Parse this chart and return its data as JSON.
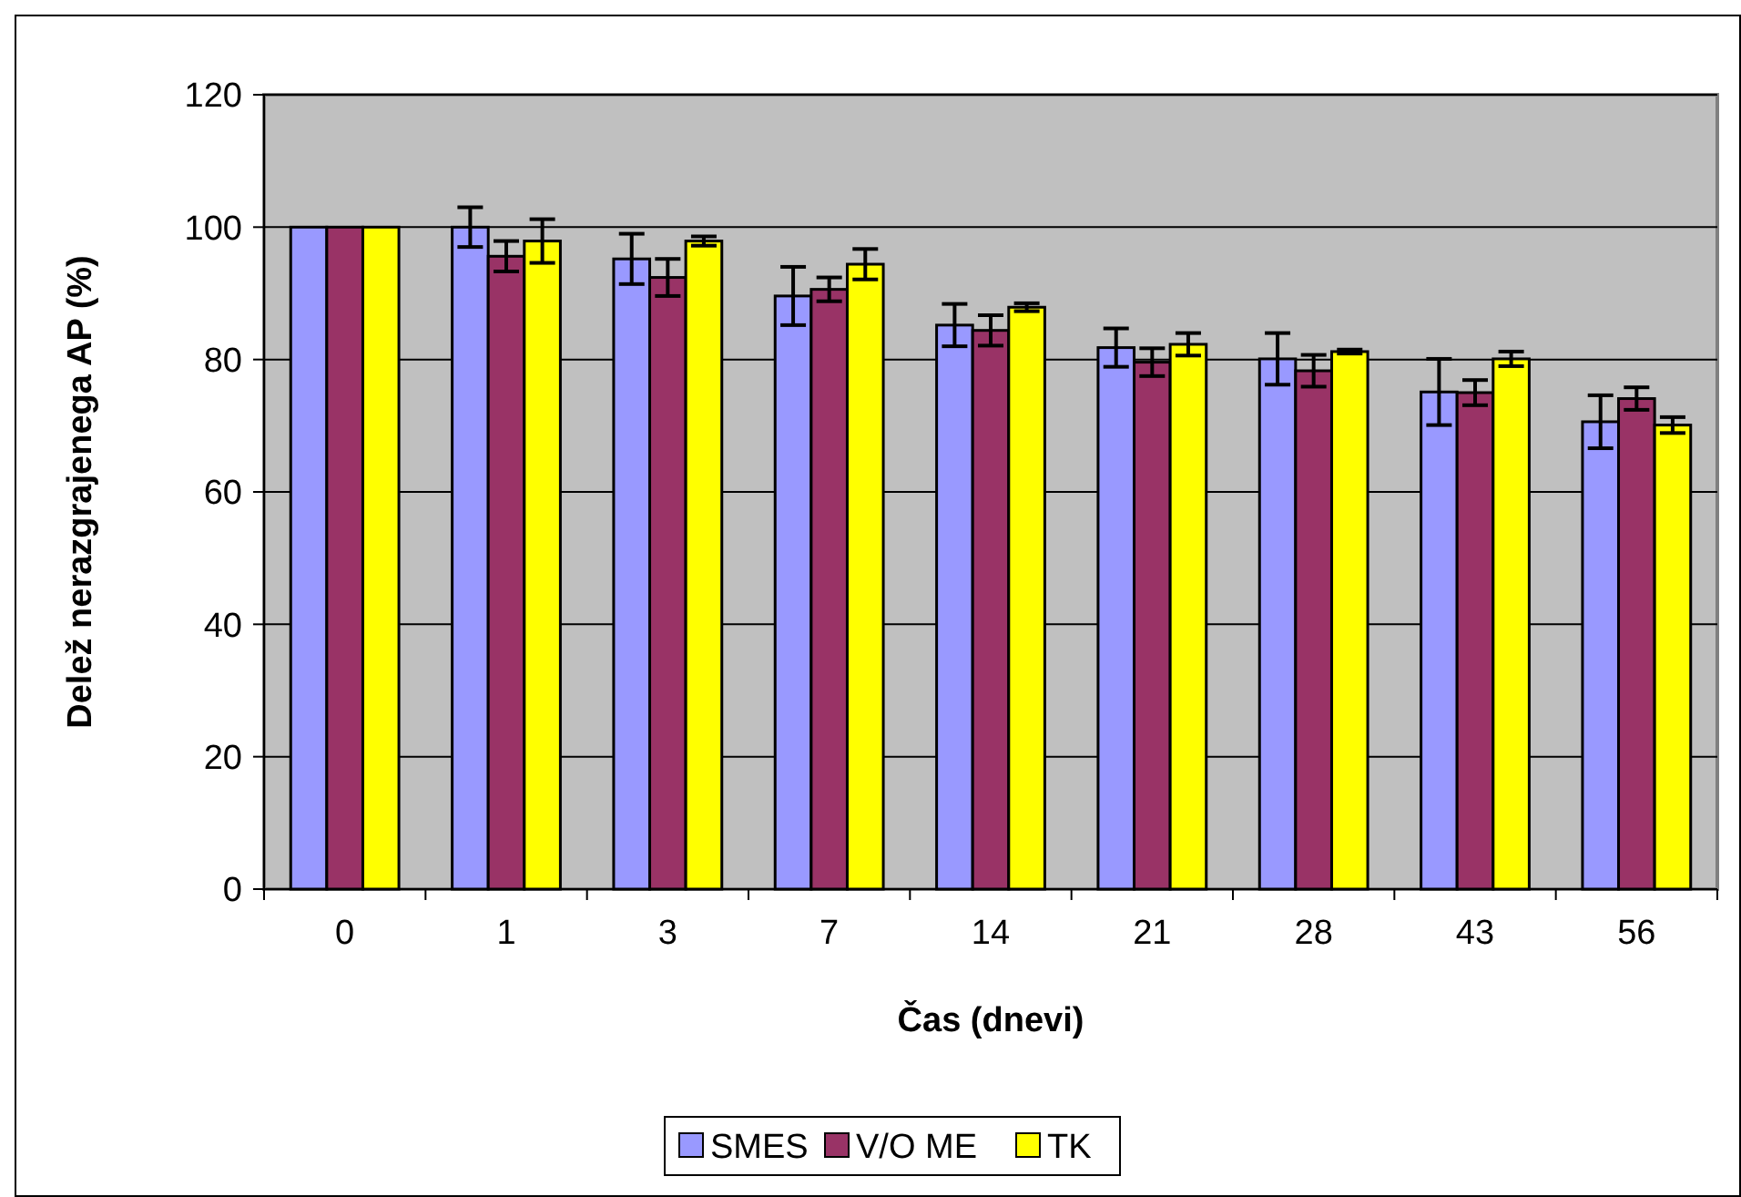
{
  "chart_data": {
    "type": "bar",
    "xlabel": "Čas (dnevi)",
    "ylabel": "Delež nerazgrajenega AP (%)",
    "categories": [
      "0",
      "1",
      "3",
      "7",
      "14",
      "21",
      "28",
      "43",
      "56"
    ],
    "series": [
      {
        "name": "SMES",
        "color": "#9999ff",
        "values": [
          100,
          100,
          95.2,
          89.6,
          85.2,
          81.8,
          80.1,
          75.1,
          70.6
        ],
        "errors": [
          null,
          3,
          3.8,
          4.4,
          3.2,
          2.9,
          3.9,
          5,
          4
        ]
      },
      {
        "name": "V/O ME",
        "color": "#993366",
        "values": [
          100,
          95.6,
          92.4,
          90.6,
          84.4,
          79.6,
          78.3,
          75,
          74.1
        ],
        "errors": [
          null,
          2.3,
          2.8,
          1.8,
          2.3,
          2.1,
          2.4,
          1.9,
          1.7
        ]
      },
      {
        "name": "TK",
        "color": "#ffff00",
        "values": [
          100,
          97.9,
          97.9,
          94.4,
          87.9,
          82.3,
          81.2,
          80.1,
          70.1
        ],
        "errors": [
          null,
          3.3,
          0.7,
          2.3,
          0.6,
          1.7,
          0.3,
          1.1,
          1.2
        ]
      }
    ],
    "ylim": [
      0,
      120
    ],
    "yticks": [
      0,
      20,
      40,
      60,
      80,
      100,
      120
    ],
    "grid": "y",
    "legend": "bottom"
  }
}
